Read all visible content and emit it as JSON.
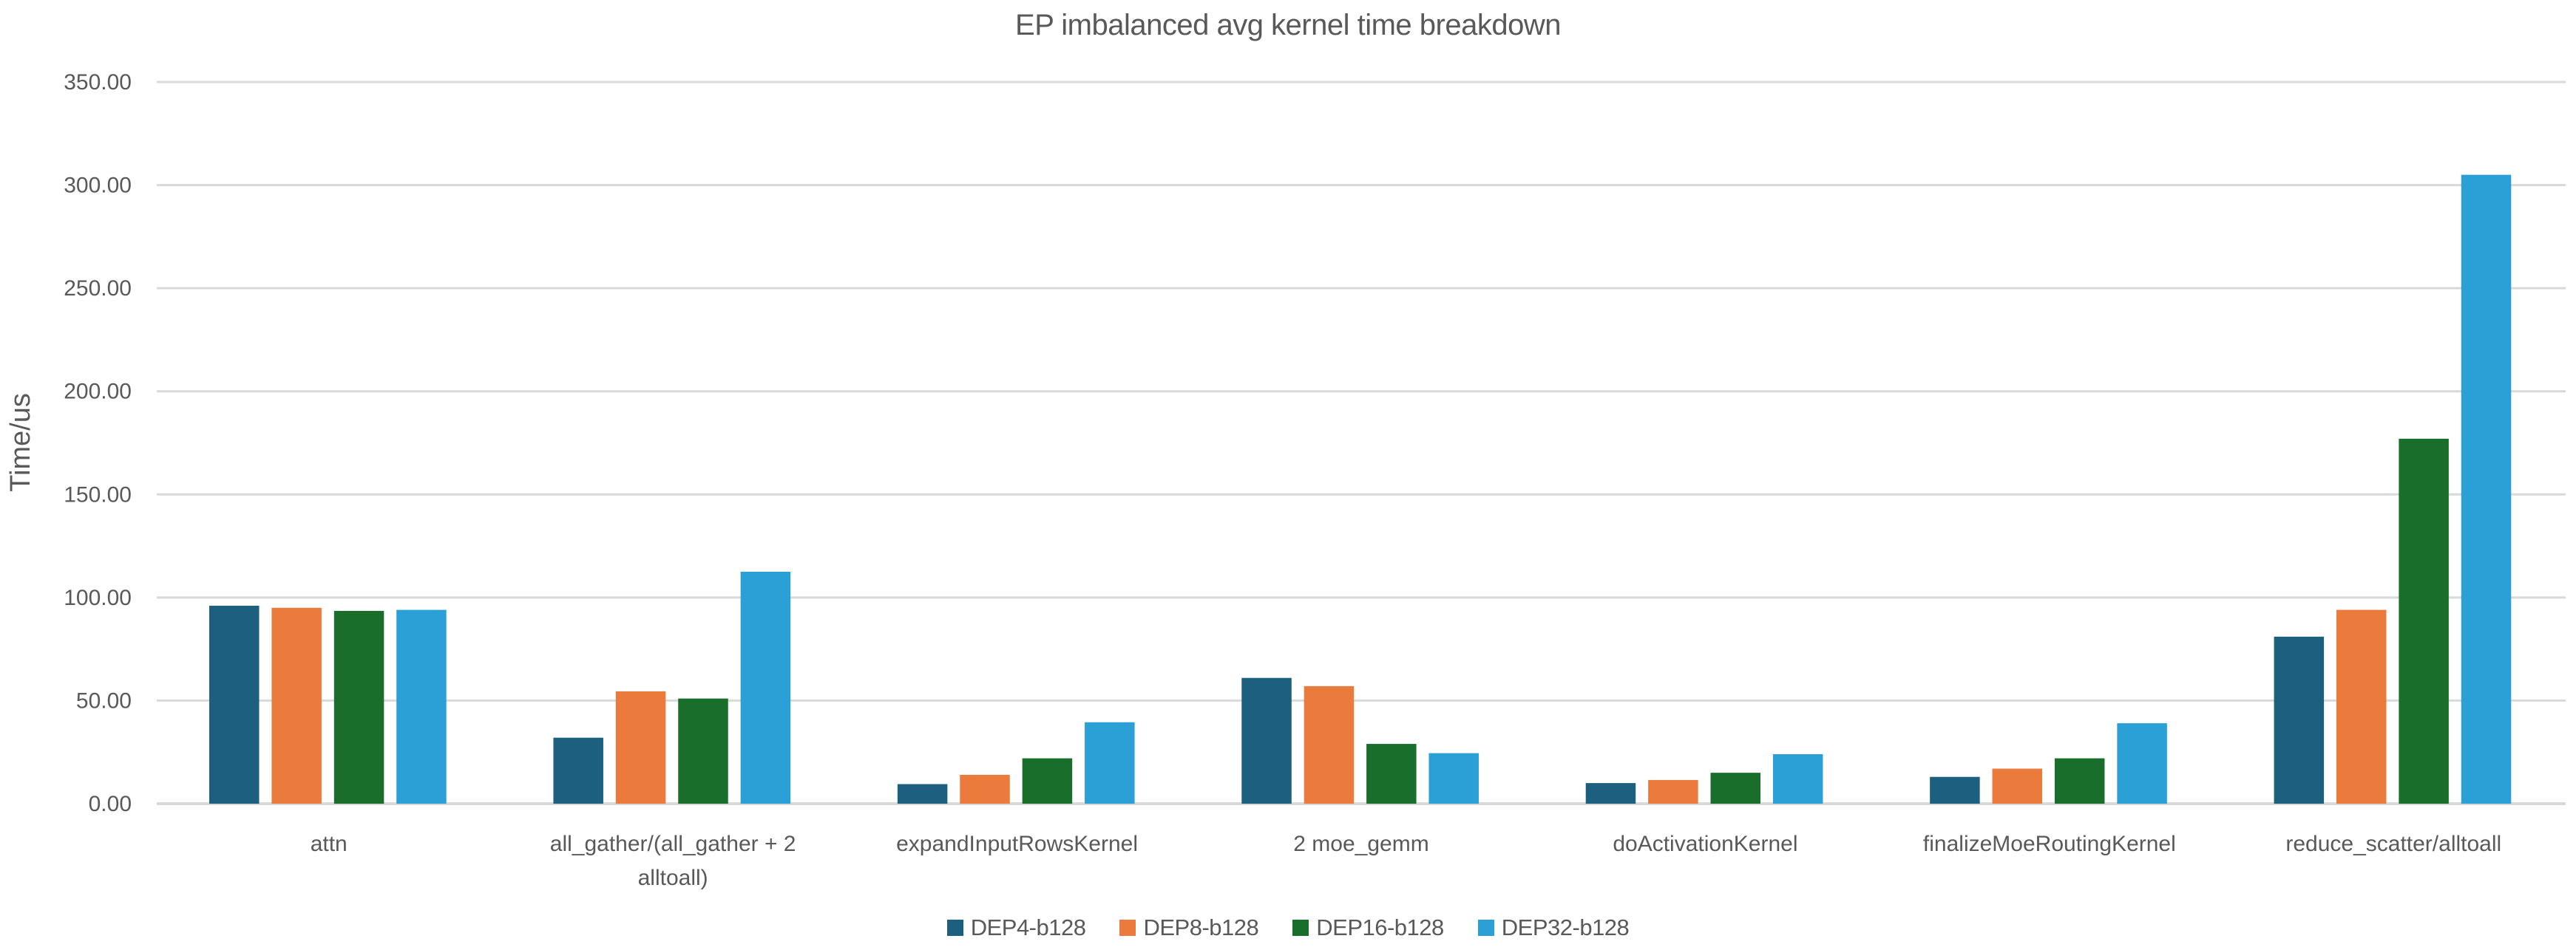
{
  "chart_data": {
    "type": "bar",
    "title": "EP imbalanced avg kernel time breakdown",
    "xlabel": "",
    "ylabel": "Time/us",
    "ylim": [
      0,
      350
    ],
    "yticks": [
      0,
      50,
      100,
      150,
      200,
      250,
      300,
      350
    ],
    "ytick_decimals": 2,
    "grid": true,
    "legend_position": "bottom",
    "text_color": "#595959",
    "grid_color": "#D9D9D9",
    "categories": [
      "attn",
      "all_gather/(all_gather + 2 alltoall)",
      "expandInputRowsKernel",
      "2 moe_gemm",
      "doActivationKernel",
      "finalizeMoeRoutingKernel",
      "reduce_scatter/alltoall"
    ],
    "category_label_lines": [
      [
        "attn"
      ],
      [
        "all_gather/(all_gather + 2",
        "alltoall)"
      ],
      [
        "expandInputRowsKernel"
      ],
      [
        "2 moe_gemm"
      ],
      [
        "doActivationKernel"
      ],
      [
        "finalizeMoeRoutingKernel"
      ],
      [
        "reduce_scatter/alltoall"
      ]
    ],
    "series": [
      {
        "name": "DEP4-b128",
        "color": "#1D5F7E",
        "values": [
          96,
          32,
          9.5,
          61,
          10,
          13,
          81
        ]
      },
      {
        "name": "DEP8-b128",
        "color": "#EB7A3D",
        "values": [
          95,
          54.5,
          14,
          57,
          11.5,
          17,
          94
        ]
      },
      {
        "name": "DEP16-b128",
        "color": "#1A6E2C",
        "values": [
          93.5,
          51,
          22,
          29,
          15,
          22,
          177
        ]
      },
      {
        "name": "DEP32-b128",
        "color": "#2BA0D6",
        "values": [
          94,
          112.5,
          39.5,
          24.5,
          24,
          39,
          305
        ]
      }
    ]
  }
}
